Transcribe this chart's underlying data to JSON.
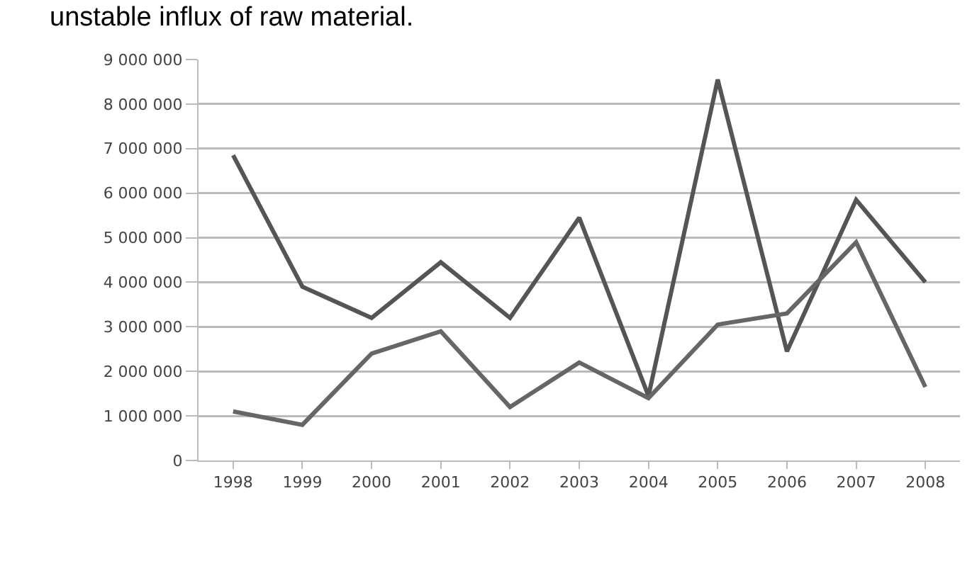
{
  "chart_data": {
    "type": "line",
    "annotations": [
      "unstable influx of raw material."
    ],
    "categories": [
      "1998",
      "1999",
      "2000",
      "2001",
      "2002",
      "2003",
      "2004",
      "2005",
      "2006",
      "2007",
      "2008"
    ],
    "series": [
      {
        "color": "#555555",
        "values": [
          6850000,
          3900000,
          3200000,
          4450000,
          3200000,
          5450000,
          1450000,
          8550000,
          2450000,
          5850000,
          4000000
        ]
      },
      {
        "color": "#666666",
        "values": [
          1100000,
          800000,
          2400000,
          2900000,
          1200000,
          2200000,
          1400000,
          3050000,
          3300000,
          4900000,
          1650000
        ]
      }
    ],
    "ylim": [
      0,
      9000000
    ],
    "yticks": [
      0,
      {
        "value": 1000000,
        "label": "1 000 000"
      },
      {
        "value": 2000000,
        "label": "2 000 000"
      },
      {
        "value": 3000000,
        "label": "3 000 000"
      },
      {
        "value": 4000000,
        "label": "4 000 000"
      },
      {
        "value": 5000000,
        "label": "5 000 000"
      },
      {
        "value": 6000000,
        "label": "6 000 000"
      },
      {
        "value": 7000000,
        "label": "7 000 000"
      },
      {
        "value": 8000000,
        "label": "8 000 000"
      },
      {
        "value": 9000000,
        "label": "9 000 000"
      }
    ],
    "grid": "y",
    "marker": "none",
    "line_style": "solid"
  }
}
